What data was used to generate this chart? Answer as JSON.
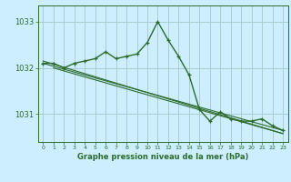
{
  "title": "Graphe pression niveau de la mer (hPa)",
  "bg_color": "#cceeff",
  "grid_color": "#aacccc",
  "line_color": "#2d6b2d",
  "x_ticks": [
    0,
    1,
    2,
    3,
    4,
    5,
    6,
    7,
    8,
    9,
    10,
    11,
    12,
    13,
    14,
    15,
    16,
    17,
    18,
    19,
    20,
    21,
    22,
    23
  ],
  "y_ticks": [
    1031,
    1032,
    1033
  ],
  "ylim": [
    1030.4,
    1033.35
  ],
  "xlim": [
    -0.5,
    23.5
  ],
  "series1": {
    "x": [
      0,
      1,
      2,
      3,
      4,
      5,
      6,
      7,
      8,
      9,
      10,
      11,
      12,
      13,
      14,
      15,
      16,
      17,
      18,
      19,
      20,
      21,
      22,
      23
    ],
    "y": [
      1032.1,
      1032.1,
      1032.0,
      1032.1,
      1032.15,
      1032.2,
      1032.35,
      1032.2,
      1032.25,
      1032.3,
      1032.55,
      1033.0,
      1032.6,
      1032.25,
      1031.85,
      1031.1,
      1030.85,
      1031.05,
      1030.9,
      1030.85,
      1030.85,
      1030.9,
      1030.75,
      1030.65
    ]
  },
  "series2": {
    "x": [
      0,
      23
    ],
    "y": [
      1032.1,
      1030.65
    ]
  },
  "series3": {
    "x": [
      0,
      23
    ],
    "y": [
      1032.15,
      1030.58
    ]
  },
  "series4": {
    "x": [
      1,
      23
    ],
    "y": [
      1032.0,
      1030.58
    ]
  }
}
